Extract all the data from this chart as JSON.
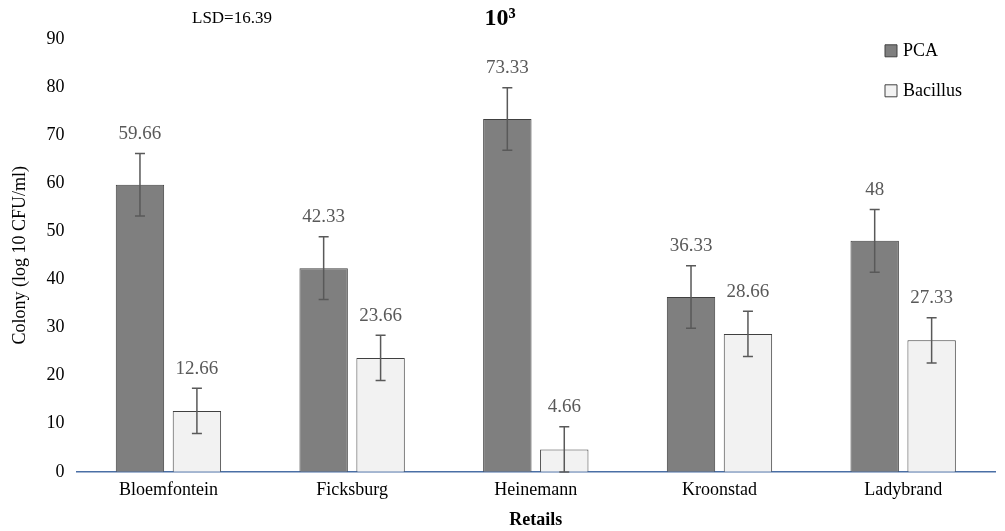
{
  "chart_data": {
    "type": "bar",
    "title": "10³",
    "xlabel": "Retails",
    "ylabel": "Colony (log 10 CFU/ml)",
    "annotations": [
      "LSD=16.39"
    ],
    "categories": [
      "Bloemfontein",
      "Ficksburg",
      "Heinemann",
      "Kroonstad",
      "Ladybrand"
    ],
    "series": [
      {
        "name": "PCA",
        "color": "#7f7f7f",
        "values": [
          59.66,
          42.33,
          73.33,
          36.33,
          48
        ],
        "errors": [
          6.5,
          6.5,
          6.5,
          6.5,
          6.5
        ]
      },
      {
        "name": "Bacillus",
        "color": "#f2f2f2",
        "values": [
          12.66,
          23.66,
          4.66,
          28.66,
          27.33
        ],
        "errors": [
          4.7,
          4.7,
          4.7,
          4.7,
          4.7
        ]
      }
    ],
    "ylim": [
      0,
      90
    ],
    "yticks": [
      0,
      10,
      20,
      30,
      40,
      50,
      60,
      70,
      80,
      90
    ],
    "grid": false,
    "legend": "top right",
    "data_labels": true
  }
}
